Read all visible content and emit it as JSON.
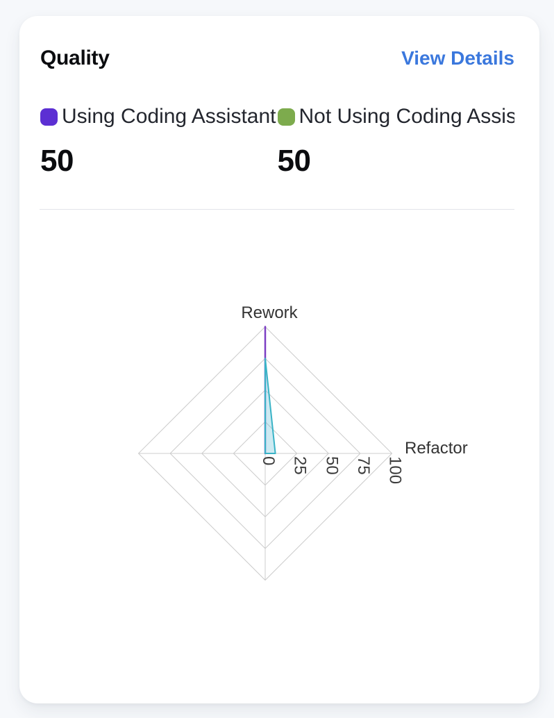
{
  "card": {
    "title": "Quality",
    "view_details": "View Details"
  },
  "legend": [
    {
      "label": "Using Coding Assistant",
      "value": "50",
      "color": "#5c2fd3"
    },
    {
      "label": "Not Using Coding Assis...",
      "value": "50",
      "color": "#7dab4d"
    }
  ],
  "colors": {
    "link_blue": "#3b78dd",
    "card_background": "#ffffff",
    "page_background": "#f6f8fb",
    "divider": "#e3e4ea"
  },
  "chart_data": {
    "type": "radar",
    "title": "Quality",
    "indicators": [
      {
        "name": "Rework",
        "max": 100
      },
      {
        "name": "Refactor",
        "max": 100
      },
      {
        "name": "",
        "max": 100
      },
      {
        "name": "",
        "max": 100
      }
    ],
    "axis_range": [
      0,
      100
    ],
    "ticks": [
      0,
      25,
      50,
      75,
      100
    ],
    "tick_rotation_deg": 90,
    "grid_levels": 4,
    "grid_color": "#cccccc",
    "grid_shape": "polygon",
    "legend_position": "top",
    "series": [
      {
        "name": "Using Coding Assistant",
        "values": [
          100,
          0,
          0,
          0
        ],
        "color": "#7c3fc4",
        "fill": "none",
        "line_width": 2.5
      },
      {
        "name": "Not Using Coding Assistant",
        "values": [
          75,
          8,
          0,
          0
        ],
        "color": "#39b3c6",
        "fill": "rgba(100,190,215,0.32)",
        "line_width": 2
      }
    ]
  }
}
